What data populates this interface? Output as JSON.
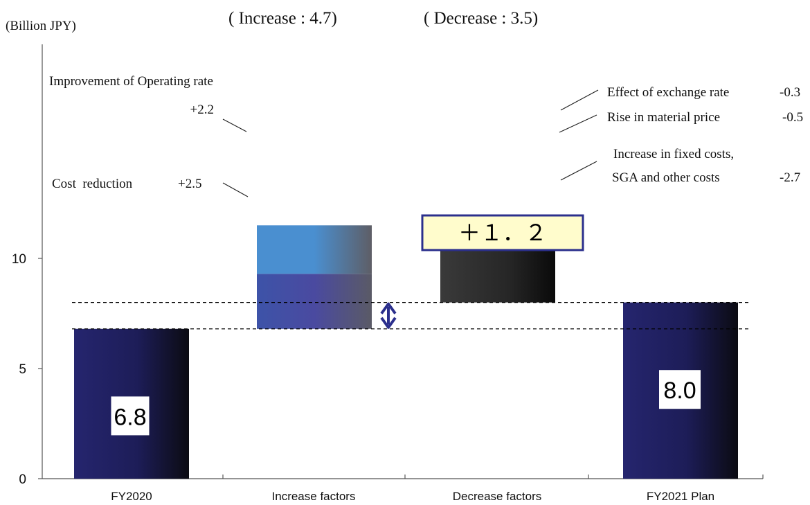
{
  "chart_data": {
    "type": "bar",
    "title": "",
    "unit_label": "(Billion JPY)",
    "categories": [
      "FY2020",
      "Increase factors",
      "Decrease factors",
      "FY2021 Plan"
    ],
    "ylim": [
      0,
      12.5
    ],
    "yticks": [
      "0",
      "5",
      "10"
    ],
    "totals": [
      {
        "category": "FY2020",
        "value": 6.8,
        "label": "6.8"
      },
      {
        "category": "FY2021 Plan",
        "value": 8.0,
        "label": "8.0"
      }
    ],
    "increase": {
      "header": "( Increase : 4.7)",
      "segments": [
        {
          "name": "Cost  reduction",
          "label": "+2.5",
          "value": 2.5
        },
        {
          "name": "Improvement of Operating rate",
          "label": "+2.2",
          "value": 2.2
        }
      ]
    },
    "decrease": {
      "header": "( Decrease : 3.5)",
      "segments": [
        {
          "name_lines": [
            "Increase in fixed costs,",
            "SGA and other costs"
          ],
          "label": "-2.7",
          "value": -2.7
        },
        {
          "name_lines": [
            "Rise in material price"
          ],
          "label": "-0.5",
          "value": -0.5
        },
        {
          "name_lines": [
            "Effect of exchange rate"
          ],
          "label": "-0.3",
          "value": -0.3
        }
      ]
    },
    "net_change": {
      "label": "＋１．２",
      "value": 1.2
    },
    "grid": false,
    "legend": "none",
    "colors": {
      "total_bar": "#25256e",
      "cost_reduction": "#3d53a8",
      "operating_rate": "#4a8fd0",
      "decrease_dark": "#333333",
      "decrease_mid": "#777777",
      "decrease_light": "#b0b0b0",
      "net_box_fill": "#fffccc",
      "net_box_border": "#2b2f8c",
      "arrow": "#2b2f8c"
    }
  }
}
